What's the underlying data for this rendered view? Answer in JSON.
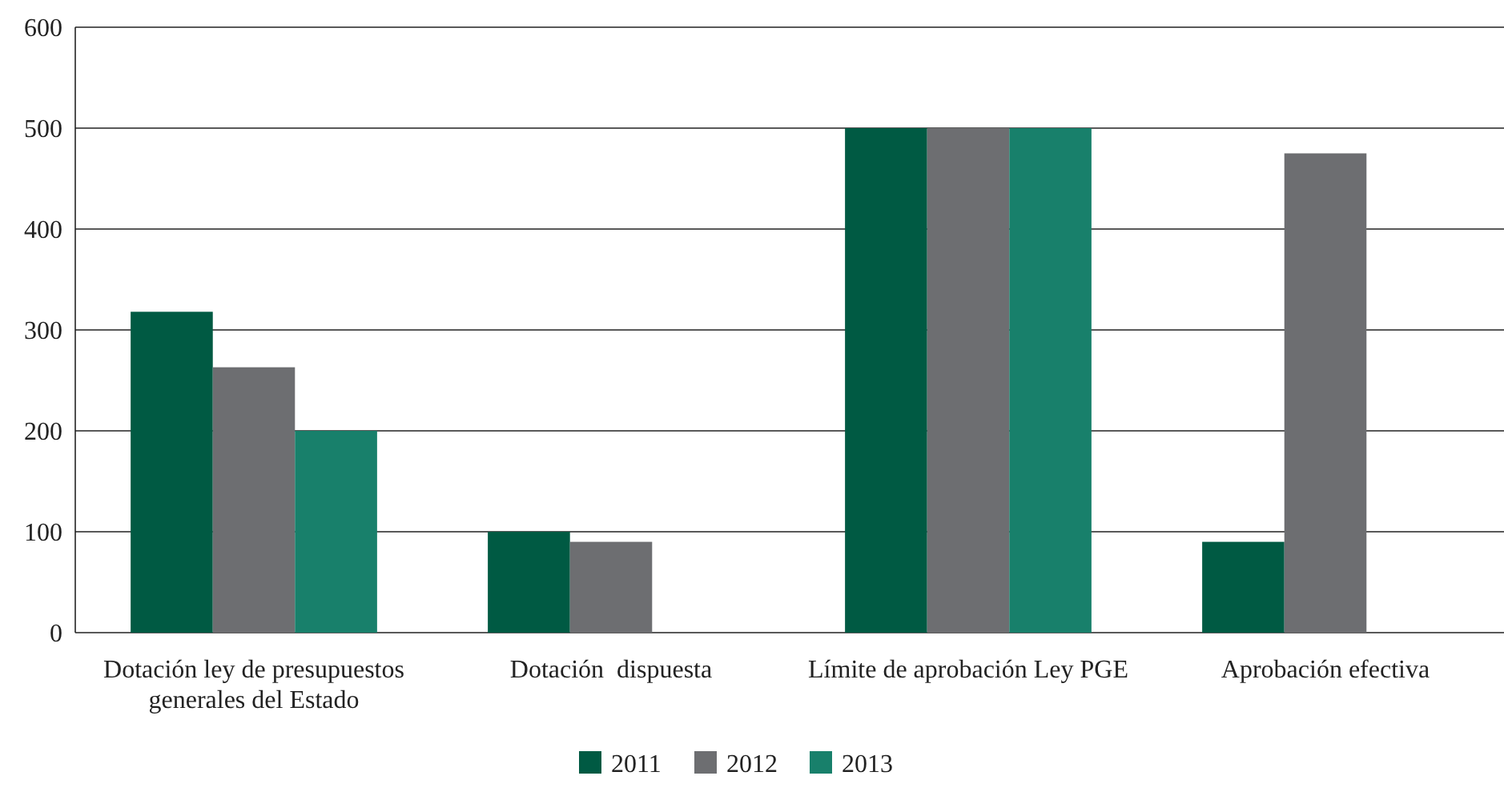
{
  "chart_data": {
    "type": "bar",
    "categories": [
      "Dotación ley de presupuestos generales del Estado",
      "Dotación  dispuesta",
      "Límite de aprobación Ley PGE",
      "Aprobación efectiva"
    ],
    "series": [
      {
        "name": "2011",
        "color": "#005a43",
        "values": [
          318,
          100,
          500,
          90
        ]
      },
      {
        "name": "2012",
        "color": "#6d6e71",
        "values": [
          263,
          90,
          500,
          475
        ]
      },
      {
        "name": "2013",
        "color": "#18806b",
        "values": [
          200,
          null,
          500,
          null
        ]
      }
    ],
    "ylim": [
      0,
      600
    ],
    "yticks": [
      0,
      100,
      200,
      300,
      400,
      500,
      600
    ],
    "grid": "y",
    "legend": "bottom"
  }
}
